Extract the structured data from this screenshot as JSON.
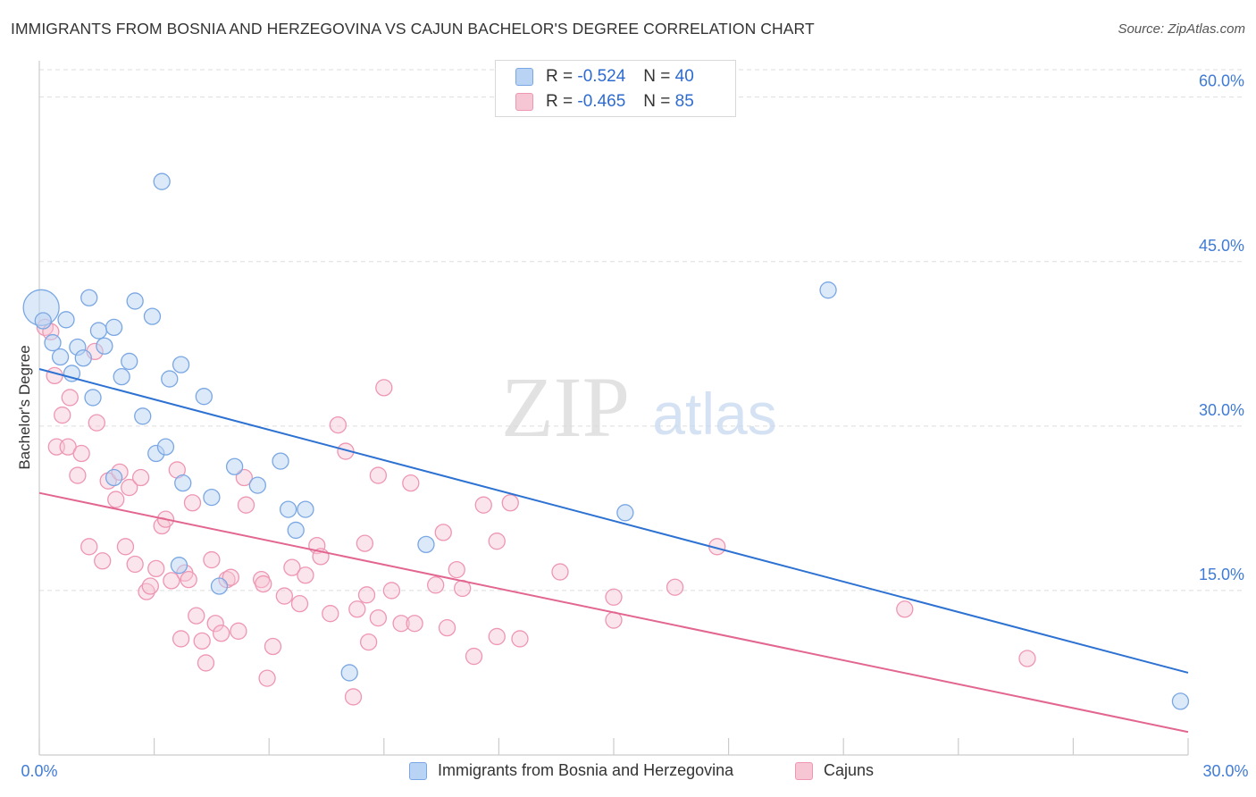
{
  "title": "IMMIGRANTS FROM BOSNIA AND HERZEGOVINA VS CAJUN BACHELOR'S DEGREE CORRELATION CHART",
  "source": "Source: ZipAtlas.com",
  "watermark": {
    "zip": "ZIP",
    "atlas": "atlas"
  },
  "colors": {
    "blue_fill": "#b9d3f4",
    "blue_stroke": "#7aa7e3",
    "blue_line": "#2d72d2",
    "pink_fill": "#f7c6d5",
    "pink_stroke": "#ee96b2",
    "pink_line": "#e2668f",
    "axis_text": "#3f7bd6",
    "grid": "#dddddd"
  },
  "legend": {
    "r_label": "R =",
    "n_label": "N =",
    "series": [
      {
        "r": "-0.524",
        "n": "40"
      },
      {
        "r": "-0.465",
        "n": "85"
      }
    ]
  },
  "chart_data": {
    "type": "scatter",
    "title": "IMMIGRANTS FROM BOSNIA AND HERZEGOVINA VS CAJUN BACHELOR'S DEGREE CORRELATION CHART",
    "xlabel": "",
    "ylabel": "Bachelor's Degree",
    "xlim": [
      0,
      30
    ],
    "ylim": [
      0,
      62.5
    ],
    "x_tick_labels": [
      "0.0%",
      "30.0%"
    ],
    "y_ticks": [
      15,
      30,
      45,
      60
    ],
    "y_tick_labels": [
      "15.0%",
      "30.0%",
      "45.0%",
      "60.0%"
    ],
    "grid": true,
    "legend_position": "top-center",
    "series": [
      {
        "name": "Immigrants from Bosnia and Herzegovina",
        "color": "#7aa7e3",
        "points": [
          [
            0.05,
            40.8
          ],
          [
            0.1,
            39.6
          ],
          [
            0.35,
            37.6
          ],
          [
            0.55,
            36.3
          ],
          [
            0.7,
            39.7
          ],
          [
            0.85,
            34.8
          ],
          [
            1.0,
            37.2
          ],
          [
            1.15,
            36.2
          ],
          [
            1.3,
            41.7
          ],
          [
            1.4,
            32.6
          ],
          [
            1.55,
            38.7
          ],
          [
            1.7,
            37.3
          ],
          [
            1.95,
            39.0
          ],
          [
            2.15,
            34.5
          ],
          [
            2.35,
            35.9
          ],
          [
            2.5,
            41.4
          ],
          [
            2.7,
            30.9
          ],
          [
            2.95,
            40.0
          ],
          [
            3.05,
            27.5
          ],
          [
            3.2,
            52.3
          ],
          [
            3.3,
            28.1
          ],
          [
            3.4,
            34.3
          ],
          [
            3.7,
            35.6
          ],
          [
            3.75,
            24.8
          ],
          [
            4.3,
            32.7
          ],
          [
            4.5,
            23.5
          ],
          [
            4.7,
            15.4
          ],
          [
            5.1,
            26.3
          ],
          [
            5.7,
            24.6
          ],
          [
            6.3,
            26.8
          ],
          [
            6.5,
            22.4
          ],
          [
            6.7,
            20.5
          ],
          [
            6.95,
            22.4
          ],
          [
            8.1,
            7.5
          ],
          [
            10.1,
            19.2
          ],
          [
            15.3,
            22.1
          ],
          [
            20.6,
            42.4
          ],
          [
            29.8,
            4.9
          ],
          [
            1.95,
            25.3
          ],
          [
            3.65,
            17.3
          ]
        ],
        "trend": {
          "x": [
            0,
            30
          ],
          "y": [
            35.2,
            7.5
          ]
        }
      },
      {
        "name": "Cajuns",
        "color": "#ee96b2",
        "points": [
          [
            0.15,
            39.0
          ],
          [
            0.3,
            38.6
          ],
          [
            0.4,
            34.6
          ],
          [
            0.45,
            28.1
          ],
          [
            0.6,
            31.0
          ],
          [
            0.75,
            28.1
          ],
          [
            0.8,
            32.6
          ],
          [
            1.0,
            25.5
          ],
          [
            1.1,
            27.5
          ],
          [
            1.3,
            19.0
          ],
          [
            1.45,
            36.8
          ],
          [
            1.5,
            30.3
          ],
          [
            1.65,
            17.7
          ],
          [
            1.8,
            25.0
          ],
          [
            2.0,
            23.3
          ],
          [
            2.1,
            25.8
          ],
          [
            2.25,
            19.0
          ],
          [
            2.35,
            24.4
          ],
          [
            2.5,
            17.4
          ],
          [
            2.65,
            25.3
          ],
          [
            2.8,
            14.9
          ],
          [
            2.9,
            15.4
          ],
          [
            3.05,
            17.0
          ],
          [
            3.2,
            20.9
          ],
          [
            3.3,
            21.5
          ],
          [
            3.45,
            15.9
          ],
          [
            3.6,
            26.0
          ],
          [
            3.7,
            10.6
          ],
          [
            3.8,
            16.6
          ],
          [
            3.9,
            16.0
          ],
          [
            4.0,
            23.0
          ],
          [
            4.1,
            12.7
          ],
          [
            4.25,
            10.4
          ],
          [
            4.35,
            8.4
          ],
          [
            4.5,
            17.8
          ],
          [
            4.6,
            12.0
          ],
          [
            4.75,
            11.1
          ],
          [
            4.9,
            16.0
          ],
          [
            5.0,
            16.2
          ],
          [
            5.2,
            11.3
          ],
          [
            5.4,
            22.8
          ],
          [
            5.35,
            25.3
          ],
          [
            5.8,
            16.0
          ],
          [
            5.85,
            15.6
          ],
          [
            5.95,
            7.0
          ],
          [
            6.1,
            9.9
          ],
          [
            6.4,
            14.5
          ],
          [
            6.6,
            17.1
          ],
          [
            6.8,
            13.8
          ],
          [
            6.95,
            16.4
          ],
          [
            7.25,
            19.1
          ],
          [
            7.35,
            18.1
          ],
          [
            7.6,
            12.9
          ],
          [
            7.8,
            30.1
          ],
          [
            8.0,
            27.7
          ],
          [
            8.2,
            5.3
          ],
          [
            8.3,
            13.3
          ],
          [
            8.5,
            19.3
          ],
          [
            8.55,
            14.6
          ],
          [
            8.6,
            10.3
          ],
          [
            8.85,
            25.5
          ],
          [
            8.85,
            12.5
          ],
          [
            9.0,
            33.5
          ],
          [
            9.2,
            15.0
          ],
          [
            9.45,
            12.0
          ],
          [
            9.8,
            12.0
          ],
          [
            9.7,
            24.8
          ],
          [
            10.35,
            15.5
          ],
          [
            10.55,
            20.3
          ],
          [
            10.65,
            11.6
          ],
          [
            10.9,
            16.9
          ],
          [
            11.05,
            15.2
          ],
          [
            11.35,
            9.0
          ],
          [
            11.6,
            22.8
          ],
          [
            11.95,
            10.8
          ],
          [
            11.95,
            19.5
          ],
          [
            12.3,
            23.0
          ],
          [
            12.55,
            10.6
          ],
          [
            13.6,
            16.7
          ],
          [
            15.0,
            14.4
          ],
          [
            15.0,
            12.3
          ],
          [
            16.6,
            15.3
          ],
          [
            17.7,
            19.0
          ],
          [
            22.6,
            13.3
          ],
          [
            25.8,
            8.8
          ]
        ],
        "trend": {
          "x": [
            0,
            30
          ],
          "y": [
            23.9,
            2.1
          ]
        }
      }
    ]
  }
}
